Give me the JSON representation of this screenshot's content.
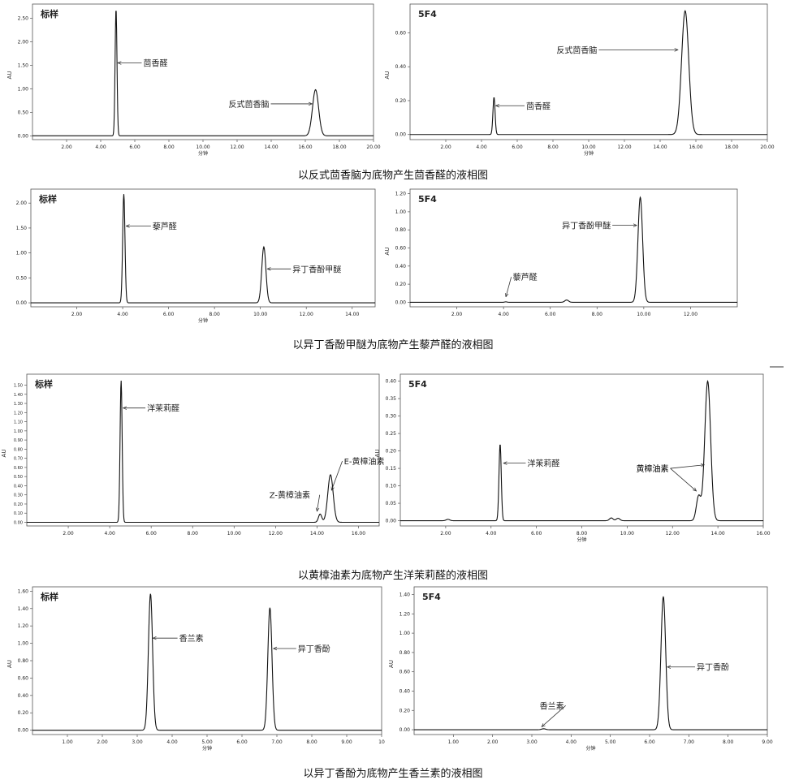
{
  "rows": [
    {
      "caption": "以反式茴香脑为底物产生茴香醛的液相图",
      "panels": [
        {
          "chart_data": {
            "type": "line",
            "tag": "标样",
            "xlabel": "分钟",
            "ylabel": "AU",
            "xlim": [
              0,
              20
            ],
            "ylim": [
              -0.08,
              2.8
            ],
            "xticks": [
              "2.00",
              "4.00",
              "6.00",
              "8.00",
              "10.00",
              "12.00",
              "14.00",
              "16.00",
              "18.00",
              "20.00"
            ],
            "xtick_values": [
              2,
              4,
              6,
              8,
              10,
              12,
              14,
              16,
              18,
              20
            ],
            "yticks": [
              "0.00",
              "0.50",
              "1.00",
              "1.50",
              "2.00",
              "2.50"
            ],
            "ytick_values": [
              0,
              0.5,
              1.0,
              1.5,
              2.0,
              2.5
            ],
            "peaks": [
              {
                "rt": 4.9,
                "height": 2.7,
                "width": 0.055
              },
              {
                "rt": 16.6,
                "height": 0.98,
                "width": 0.18
              }
            ],
            "annotations": [
              {
                "text": "茴香醛",
                "x": 5.0,
                "y": 1.55,
                "tx": 6.5,
                "ty": 1.55
              },
              {
                "text": "反式茴香脑",
                "x": 16.4,
                "y": 0.68,
                "tx": 11.5,
                "ty": 0.68
              }
            ]
          }
        },
        {
          "chart_data": {
            "type": "line",
            "tag": "5F4",
            "xlabel": "分钟",
            "ylabel": "AU",
            "xlim": [
              0,
              20
            ],
            "ylim": [
              -0.03,
              0.77
            ],
            "xticks": [
              "2.00",
              "4.00",
              "6.00",
              "8.00",
              "10.00",
              "12.00",
              "14.00",
              "16.00",
              "18.00",
              "20.00"
            ],
            "xtick_values": [
              2,
              4,
              6,
              8,
              10,
              12,
              14,
              16,
              18,
              20
            ],
            "yticks": [
              "0.00",
              "0.20",
              "0.40",
              "0.60"
            ],
            "ytick_values": [
              0,
              0.2,
              0.4,
              0.6
            ],
            "peaks": [
              {
                "rt": 4.7,
                "height": 0.22,
                "width": 0.06
              },
              {
                "rt": 15.4,
                "height": 0.73,
                "width": 0.2
              }
            ],
            "annotations": [
              {
                "text": "茴香醛",
                "x": 4.8,
                "y": 0.17,
                "tx": 6.5,
                "ty": 0.17
              },
              {
                "text": "反式茴香脑",
                "x": 15.0,
                "y": 0.5,
                "tx": 8.2,
                "ty": 0.5
              }
            ]
          }
        }
      ]
    },
    {
      "caption": "以异丁香酚甲醚为底物产生藜芦醛的液相图",
      "panels": [
        {
          "chart_data": {
            "type": "line",
            "tag": "标样",
            "xlabel": "分钟",
            "ylabel": "",
            "xlim": [
              0,
              15
            ],
            "ylim": [
              -0.08,
              2.28
            ],
            "xticks": [
              "2.00",
              "4.00",
              "6.00",
              "8.00",
              "10.00",
              "12.00",
              "14.00"
            ],
            "xtick_values": [
              2,
              4,
              6,
              8,
              10,
              12,
              14
            ],
            "yticks": [
              "0.00",
              "0.50",
              "1.00",
              "1.50",
              "2.00"
            ],
            "ytick_values": [
              0,
              0.5,
              1.0,
              1.5,
              2.0
            ],
            "peaks": [
              {
                "rt": 4.05,
                "height": 2.18,
                "width": 0.05
              },
              {
                "rt": 10.15,
                "height": 1.12,
                "width": 0.09
              }
            ],
            "annotations": [
              {
                "text": "藜芦醛",
                "x": 4.15,
                "y": 1.54,
                "tx": 5.3,
                "ty": 1.54
              },
              {
                "text": "异丁香酚甲醚",
                "x": 10.3,
                "y": 0.68,
                "tx": 11.4,
                "ty": 0.68
              }
            ]
          }
        },
        {
          "chart_data": {
            "type": "line",
            "tag": "5F4",
            "xlabel": "",
            "ylabel": "AU",
            "xlim": [
              0,
              14
            ],
            "ylim": [
              -0.05,
              1.25
            ],
            "xticks": [
              "2.00",
              "4.00",
              "6.00",
              "8.00",
              "10.00",
              "12.00"
            ],
            "xtick_values": [
              2,
              4,
              6,
              8,
              10,
              12
            ],
            "yticks": [
              "0.00",
              "0.20",
              "0.40",
              "0.60",
              "0.80",
              "1.00",
              "1.20"
            ],
            "ytick_values": [
              0,
              0.2,
              0.4,
              0.6,
              0.8,
              1.0,
              1.2
            ],
            "peaks": [
              {
                "rt": 4.1,
                "height": 0.005,
                "width": 0.05
              },
              {
                "rt": 6.7,
                "height": 0.025,
                "width": 0.08
              },
              {
                "rt": 9.85,
                "height": 1.16,
                "width": 0.1
              }
            ],
            "annotations": [
              {
                "text": "藜芦醛",
                "x": 4.1,
                "y": 0.06,
                "tx": 4.4,
                "ty": 0.28
              },
              {
                "text": "异丁香酚甲醚",
                "x": 9.7,
                "y": 0.85,
                "tx": 6.5,
                "ty": 0.85
              }
            ]
          }
        }
      ]
    },
    {
      "caption": "以黄樟油素为底物产生洋茉莉醛的液相图",
      "panels": [
        {
          "chart_data": {
            "type": "line",
            "tag": "标样",
            "xlabel": "",
            "ylabel": "AU",
            "xlim": [
              0,
              17
            ],
            "ylim": [
              -0.04,
              1.62
            ],
            "xticks": [
              "2.00",
              "4.00",
              "6.00",
              "8.00",
              "10.00",
              "12.00",
              "14.00",
              "16.00"
            ],
            "xtick_values": [
              2,
              4,
              6,
              8,
              10,
              12,
              14,
              16
            ],
            "yticks": [
              "0.00",
              "0.10",
              "0.20",
              "0.30",
              "0.40",
              "0.50",
              "0.60",
              "0.70",
              "0.80",
              "0.90",
              "1.00",
              "1.10",
              "1.20",
              "1.30",
              "1.40",
              "1.50"
            ],
            "ytick_values": [
              0,
              0.1,
              0.2,
              0.3,
              0.4,
              0.5,
              0.6,
              0.7,
              0.8,
              0.9,
              1.0,
              1.1,
              1.2,
              1.3,
              1.4,
              1.5
            ],
            "peaks": [
              {
                "rt": 4.55,
                "height": 1.55,
                "width": 0.05
              },
              {
                "rt": 14.15,
                "height": 0.09,
                "width": 0.08
              },
              {
                "rt": 14.65,
                "height": 0.52,
                "width": 0.13
              }
            ],
            "annotations": [
              {
                "text": "洋茉莉醛",
                "x": 4.65,
                "y": 1.25,
                "tx": 5.8,
                "ty": 1.25
              },
              {
                "text": "Z-黄樟油素",
                "x": 14.0,
                "y": 0.12,
                "tx": 11.7,
                "ty": 0.3
              },
              {
                "text": "E-黄樟油素",
                "x": 14.7,
                "y": 0.35,
                "tx": 15.3,
                "ty": 0.67
              }
            ]
          }
        },
        {
          "chart_data": {
            "type": "line",
            "tag": "5F4",
            "xlabel": "分钟",
            "ylabel": "AU",
            "xlim": [
              0,
              16
            ],
            "ylim": [
              -0.015,
              0.42
            ],
            "xticks": [
              "2.00",
              "4.00",
              "6.00",
              "8.00",
              "10.00",
              "12.00",
              "14.00",
              "16.00"
            ],
            "xtick_values": [
              2,
              4,
              6,
              8,
              10,
              12,
              14,
              16
            ],
            "yticks": [
              "0.00",
              "0.05",
              "0.10",
              "0.15",
              "0.20",
              "0.25",
              "0.30",
              "0.35",
              "0.40"
            ],
            "ytick_values": [
              0,
              0.05,
              0.1,
              0.15,
              0.2,
              0.25,
              0.3,
              0.35,
              0.4
            ],
            "peaks": [
              {
                "rt": 2.1,
                "height": 0.004,
                "width": 0.08
              },
              {
                "rt": 4.4,
                "height": 0.22,
                "width": 0.05
              },
              {
                "rt": 9.3,
                "height": 0.008,
                "width": 0.08
              },
              {
                "rt": 9.6,
                "height": 0.007,
                "width": 0.08
              },
              {
                "rt": 13.15,
                "height": 0.07,
                "width": 0.1
              },
              {
                "rt": 13.55,
                "height": 0.4,
                "width": 0.13
              }
            ],
            "annotations": [
              {
                "text": "洋茉莉醛",
                "x": 4.55,
                "y": 0.165,
                "tx": 5.6,
                "ty": 0.165
              },
              {
                "text": "黄樟油素",
                "x": 13.05,
                "y": 0.085,
                "tx": 10.4,
                "ty": 0.15
              },
              {
                "text": "黄樟油素",
                "x": 13.4,
                "y": 0.16,
                "tx": 10.4,
                "ty": 0.15
              }
            ]
          }
        }
      ]
    },
    {
      "caption": "以异丁香酚为底物产生香兰素的液相图",
      "panels": [
        {
          "chart_data": {
            "type": "line",
            "tag": "标样",
            "xlabel": "分钟",
            "ylabel": "AU",
            "xlim": [
              0,
              10
            ],
            "ylim": [
              -0.05,
              1.65
            ],
            "xticks": [
              "1.00",
              "2.00",
              "3.00",
              "4.00",
              "5.00",
              "6.00",
              "7.00",
              "8.00",
              "9.00",
              "10"
            ],
            "xtick_values": [
              1,
              2,
              3,
              4,
              5,
              6,
              7,
              8,
              9,
              10
            ],
            "yticks": [
              "0.00",
              "0.20",
              "0.40",
              "0.60",
              "0.80",
              "1.00",
              "1.20",
              "1.40",
              "1.60"
            ],
            "ytick_values": [
              0,
              0.2,
              0.4,
              0.6,
              0.8,
              1.0,
              1.2,
              1.4,
              1.6
            ],
            "peaks": [
              {
                "rt": 3.38,
                "height": 1.57,
                "width": 0.06
              },
              {
                "rt": 6.8,
                "height": 1.41,
                "width": 0.06
              }
            ],
            "annotations": [
              {
                "text": "香兰素",
                "x": 3.45,
                "y": 1.06,
                "tx": 4.2,
                "ty": 1.06
              },
              {
                "text": "异丁香酚",
                "x": 6.9,
                "y": 0.94,
                "tx": 7.6,
                "ty": 0.94
              }
            ]
          }
        },
        {
          "chart_data": {
            "type": "line",
            "tag": "5F4",
            "xlabel": "分钟",
            "ylabel": "AU",
            "xlim": [
              0,
              9
            ],
            "ylim": [
              -0.05,
              1.48
            ],
            "xticks": [
              "1.00",
              "2.00",
              "3.00",
              "4.00",
              "5.00",
              "6.00",
              "7.00",
              "8.00",
              "9.00"
            ],
            "xtick_values": [
              1,
              2,
              3,
              4,
              5,
              6,
              7,
              8,
              9
            ],
            "yticks": [
              "0.00",
              "0.20",
              "0.40",
              "0.60",
              "0.80",
              "1.00",
              "1.20",
              "1.40"
            ],
            "ytick_values": [
              0,
              0.2,
              0.4,
              0.6,
              0.8,
              1.0,
              1.2,
              1.4
            ],
            "peaks": [
              {
                "rt": 3.3,
                "height": 0.01,
                "width": 0.05
              },
              {
                "rt": 6.35,
                "height": 1.38,
                "width": 0.06
              }
            ],
            "annotations": [
              {
                "text": "香兰素",
                "x": 3.25,
                "y": 0.03,
                "tx": 3.2,
                "ty": 0.25
              },
              {
                "text": "异丁香酚",
                "x": 6.45,
                "y": 0.65,
                "tx": 7.2,
                "ty": 0.65
              }
            ]
          }
        }
      ]
    }
  ]
}
